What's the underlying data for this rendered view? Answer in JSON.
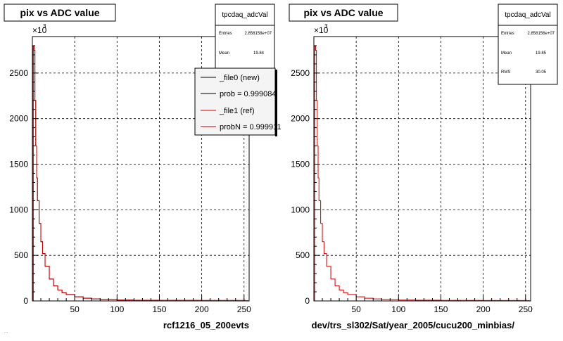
{
  "panels": [
    {
      "title": "pix vs ADC value",
      "xlabel": "rcf1216_05_200evts",
      "exponent_base": "×10",
      "exponent_power": "3",
      "stats": {
        "name": "tpcdaq_adcVal",
        "rows": [
          {
            "label": "Entries",
            "value": "2.858158e+07"
          },
          {
            "label": "Mean",
            "value": "19.84"
          }
        ]
      },
      "legend": [
        {
          "label": "_file0 (new)",
          "color": "#000000"
        },
        {
          "label": "prob = 0.999084",
          "color": "#000000"
        },
        {
          "label": "_file1 (ref)",
          "color": "#cc0000"
        },
        {
          "label": "probN = 0.999911",
          "color": "#cc0000"
        }
      ]
    },
    {
      "title": "pix vs ADC value",
      "xlabel": "dev/trs_sl302/Sat/year_2005/cucu200_minbias/",
      "exponent_base": "×10",
      "exponent_power": "3",
      "stats": {
        "name": "tpcdaq_adcVal",
        "rows": [
          {
            "label": "Entries",
            "value": "2.858156e+07"
          },
          {
            "label": "Mean",
            "value": "19.85"
          },
          {
            "label": "RMS",
            "value": "30.05"
          }
        ]
      },
      "legend": []
    }
  ],
  "footer_text": "...",
  "chart_data": [
    {
      "type": "area",
      "title": "pix vs ADC value",
      "xlabel": "rcf1216_05_200evts",
      "ylabel": "",
      "xlim": [
        0,
        256
      ],
      "ylim": [
        0,
        2900
      ],
      "y_scale_note": "×10^3",
      "xticks": [
        50,
        100,
        150,
        200,
        250
      ],
      "yticks": [
        0,
        500,
        1000,
        1500,
        2000,
        2500
      ],
      "grid": true,
      "series": [
        {
          "name": "_file0 (new)",
          "color": "#000000",
          "x": [
            0,
            1,
            2,
            3,
            4,
            5,
            6,
            8,
            10,
            12,
            15,
            20,
            25,
            30,
            35,
            40,
            50,
            60,
            70,
            80,
            100,
            120,
            150,
            200,
            250,
            256
          ],
          "y": [
            0,
            2800,
            2750,
            2200,
            1700,
            1350,
            1100,
            850,
            650,
            520,
            380,
            240,
            165,
            120,
            90,
            70,
            45,
            30,
            22,
            16,
            10,
            8,
            6,
            5,
            4,
            4
          ]
        },
        {
          "name": "_file1 (ref)",
          "color": "#cc0000",
          "x": [
            0,
            1,
            2,
            3,
            4,
            5,
            6,
            8,
            10,
            12,
            15,
            20,
            25,
            30,
            35,
            40,
            50,
            60,
            70,
            80,
            100,
            120,
            150,
            200,
            250,
            256
          ],
          "y": [
            0,
            2800,
            2750,
            2200,
            1700,
            1350,
            1100,
            850,
            650,
            520,
            380,
            240,
            165,
            120,
            90,
            70,
            45,
            30,
            22,
            16,
            10,
            8,
            6,
            5,
            4,
            4
          ]
        }
      ],
      "legend_position": "top-right"
    },
    {
      "type": "area",
      "title": "pix vs ADC value",
      "xlabel": "dev/trs_sl302/Sat/year_2005/cucu200_minbias/",
      "ylabel": "",
      "xlim": [
        0,
        256
      ],
      "ylim": [
        0,
        2900
      ],
      "y_scale_note": "×10^3",
      "xticks": [
        50,
        100,
        150,
        200,
        250
      ],
      "yticks": [
        0,
        500,
        1000,
        1500,
        2000,
        2500
      ],
      "grid": true,
      "series": [
        {
          "color": "#cc0000",
          "x": [
            0,
            1,
            2,
            3,
            4,
            5,
            6,
            8,
            10,
            12,
            15,
            20,
            25,
            30,
            35,
            40,
            50,
            60,
            70,
            80,
            100,
            120,
            150,
            200,
            250,
            256
          ],
          "y": [
            0,
            2800,
            2750,
            2200,
            1700,
            1350,
            1100,
            850,
            650,
            520,
            380,
            240,
            165,
            120,
            90,
            70,
            45,
            30,
            22,
            16,
            10,
            8,
            6,
            5,
            4,
            4
          ]
        }
      ]
    }
  ]
}
